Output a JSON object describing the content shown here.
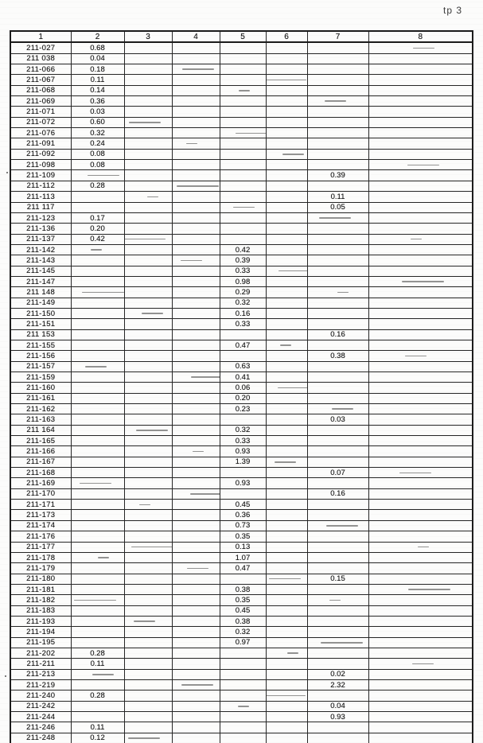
{
  "page": {
    "corner_label": "tp 3"
  },
  "table": {
    "columns": [
      "1",
      "2",
      "3",
      "4",
      "5",
      "6",
      "7",
      "8"
    ],
    "rows": [
      {
        "id": "211-027",
        "col": 2,
        "value": "0.68"
      },
      {
        "id": "211 038",
        "col": 2,
        "value": "0.04"
      },
      {
        "id": "211-066",
        "col": 2,
        "value": "0.18"
      },
      {
        "id": "211-067",
        "col": 2,
        "value": "0.11"
      },
      {
        "id": "211-068",
        "col": 2,
        "value": "0.14"
      },
      {
        "id": "211-069",
        "col": 2,
        "value": "0.36"
      },
      {
        "id": "211-071",
        "col": 2,
        "value": "0.03"
      },
      {
        "id": "211-072",
        "col": 2,
        "value": "0.60"
      },
      {
        "id": "211-076",
        "col": 2,
        "value": "0.32"
      },
      {
        "id": "211-091",
        "col": 2,
        "value": "0.24"
      },
      {
        "id": "211-092",
        "col": 2,
        "value": "0.08"
      },
      {
        "id": "211-098",
        "col": 2,
        "value": "0.08"
      },
      {
        "id": "211-109",
        "col": 7,
        "value": "0.39"
      },
      {
        "id": "211-112",
        "col": 2,
        "value": "0.28"
      },
      {
        "id": "211-113",
        "col": 7,
        "value": "0.11"
      },
      {
        "id": "211 117",
        "col": 7,
        "value": "0.05"
      },
      {
        "id": "211-123",
        "col": 2,
        "value": "0.17"
      },
      {
        "id": "211-136",
        "col": 2,
        "value": "0.20"
      },
      {
        "id": "211-137",
        "col": 2,
        "value": "0.42"
      },
      {
        "id": "211-142",
        "col": 5,
        "value": "0.42"
      },
      {
        "id": "211-143",
        "col": 5,
        "value": "0.39"
      },
      {
        "id": "211-145",
        "col": 5,
        "value": "0.33"
      },
      {
        "id": "211-147",
        "col": 5,
        "value": "0.98"
      },
      {
        "id": "211 148",
        "col": 5,
        "value": "0.29"
      },
      {
        "id": "211-149",
        "col": 5,
        "value": "0.32"
      },
      {
        "id": "211-150",
        "col": 5,
        "value": "0.16"
      },
      {
        "id": "211-151",
        "col": 5,
        "value": "0.33"
      },
      {
        "id": "211 153",
        "col": 7,
        "value": "0.16"
      },
      {
        "id": "211-155",
        "col": 5,
        "value": "0.47"
      },
      {
        "id": "211-156",
        "col": 7,
        "value": "0.38"
      },
      {
        "id": "211-157",
        "col": 5,
        "value": "0.63"
      },
      {
        "id": "211-159",
        "col": 5,
        "value": "0.41"
      },
      {
        "id": "211-160",
        "col": 5,
        "value": "0.06"
      },
      {
        "id": "211-161",
        "col": 5,
        "value": "0.20"
      },
      {
        "id": "211-162",
        "col": 5,
        "value": "0.23"
      },
      {
        "id": "211-163",
        "col": 7,
        "value": "0.03"
      },
      {
        "id": "211 164",
        "col": 5,
        "value": "0.32"
      },
      {
        "id": "211-165",
        "col": 5,
        "value": "0.33"
      },
      {
        "id": "211-166",
        "col": 5,
        "value": "0.93"
      },
      {
        "id": "211-167",
        "col": 5,
        "value": "1.39"
      },
      {
        "id": "211-168",
        "col": 7,
        "value": "0.07"
      },
      {
        "id": "211-169",
        "col": 5,
        "value": "0.93"
      },
      {
        "id": "211-170",
        "col": 7,
        "value": "0.16"
      },
      {
        "id": "211-171",
        "col": 5,
        "value": "0.45"
      },
      {
        "id": "211-173",
        "col": 5,
        "value": "0.36"
      },
      {
        "id": "211-174",
        "col": 5,
        "value": "0.73"
      },
      {
        "id": "211-176",
        "col": 5,
        "value": "0.35"
      },
      {
        "id": "211-177",
        "col": 5,
        "value": "0.13"
      },
      {
        "id": "211-178",
        "col": 5,
        "value": "1.07"
      },
      {
        "id": "211-179",
        "col": 5,
        "value": "0.47"
      },
      {
        "id": "211-180",
        "col": 7,
        "value": "0.15"
      },
      {
        "id": "211-181",
        "col": 5,
        "value": "0.38"
      },
      {
        "id": "211-182",
        "col": 5,
        "value": "0.35"
      },
      {
        "id": "211-183",
        "col": 5,
        "value": "0.45"
      },
      {
        "id": "211-193",
        "col": 5,
        "value": "0.38"
      },
      {
        "id": "211-194",
        "col": 5,
        "value": "0.32"
      },
      {
        "id": "211-195",
        "col": 5,
        "value": "0.97"
      },
      {
        "id": "211-202",
        "col": 2,
        "value": "0.28"
      },
      {
        "id": "211-211",
        "col": 2,
        "value": "0.11"
      },
      {
        "id": "211-213",
        "col": 7,
        "value": "0.02"
      },
      {
        "id": "211-219",
        "col": 7,
        "value": "2.32"
      },
      {
        "id": "211-240",
        "col": 2,
        "value": "0.28"
      },
      {
        "id": "211-242",
        "col": 7,
        "value": "0.04"
      },
      {
        "id": "211-244",
        "col": 7,
        "value": "0.93"
      },
      {
        "id": "211-246",
        "col": 2,
        "value": "0.11"
      },
      {
        "id": "211-248",
        "col": 2,
        "value": "0.12"
      }
    ]
  }
}
